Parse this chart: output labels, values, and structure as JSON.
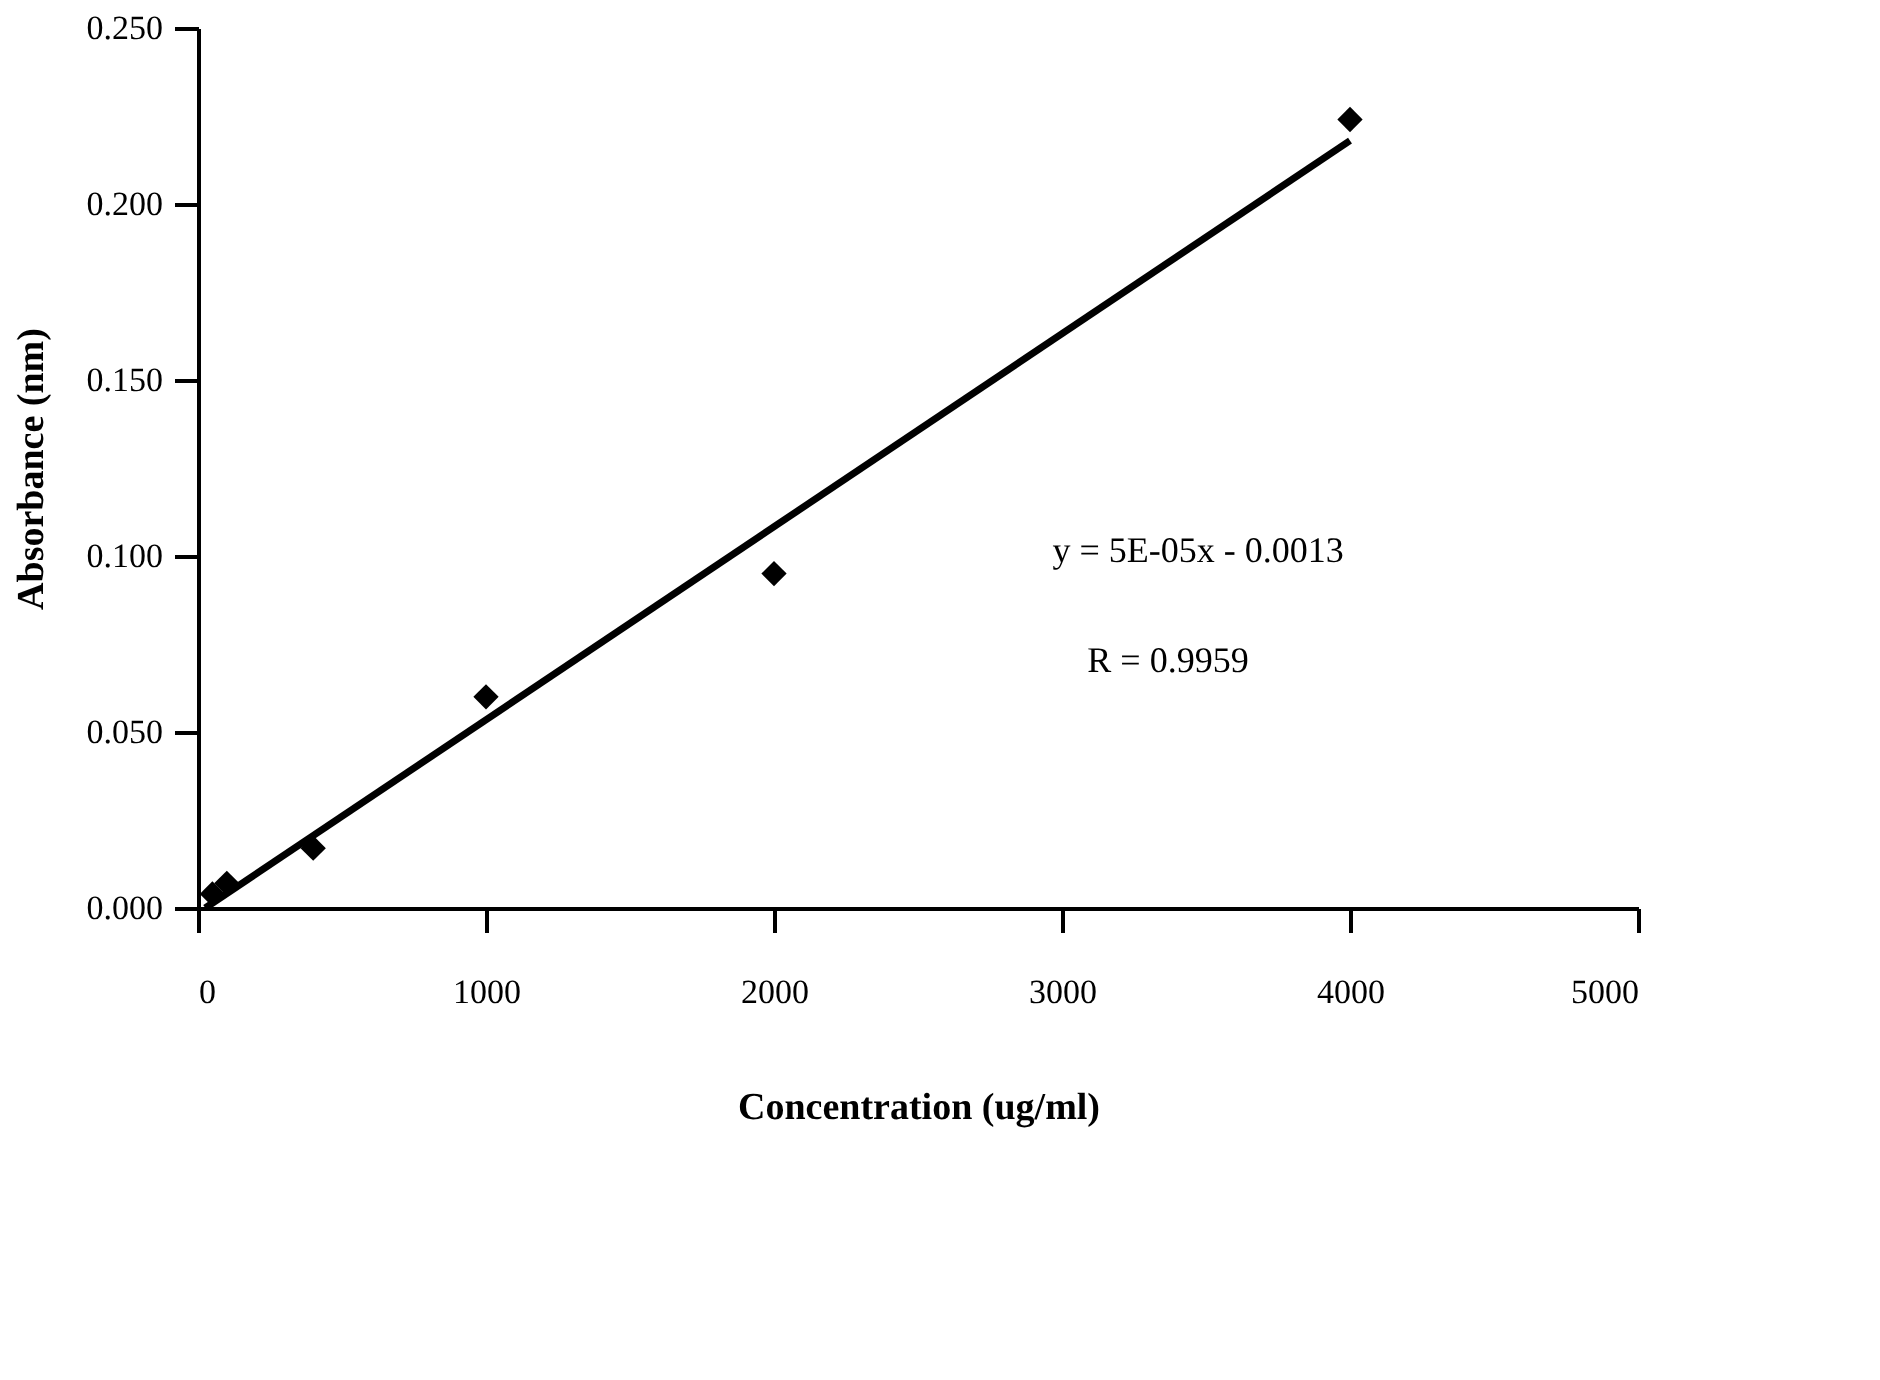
{
  "chart_data": {
    "type": "scatter",
    "xlabel": "Concentration (ug/ml)",
    "ylabel": "Absorbance (nm)",
    "xlim": [
      0,
      5000
    ],
    "xticks": [
      0,
      1000,
      2000,
      3000,
      4000,
      5000
    ],
    "ylim": [
      0,
      0.25
    ],
    "yticks": [
      {
        "value": 0,
        "label": "0.000"
      },
      {
        "value": 0.05,
        "label": "0.050"
      },
      {
        "value": 0.1,
        "label": "0.100"
      },
      {
        "value": 0.15,
        "label": "0.150"
      },
      {
        "value": 0.2,
        "label": "0.200"
      },
      {
        "value": 0.25,
        "label": "0.250"
      }
    ],
    "series": [
      {
        "color": "#000000",
        "marker": "diamond",
        "x": [
          50,
          100,
          400,
          1000,
          2000,
          4000
        ],
        "values": [
          0.004,
          0.007,
          0.017,
          0.06,
          0.095,
          0.224
        ]
      },
      {
        "type": "line",
        "color": "#000000",
        "marker": "none",
        "line_style": "solid",
        "x": [
          25,
          4000
        ],
        "values": [
          0.0,
          0.218
        ]
      }
    ],
    "annotations": [
      "y = 5E-05x - 0.0013",
      "R = 0.9959"
    ],
    "grid": false
  }
}
